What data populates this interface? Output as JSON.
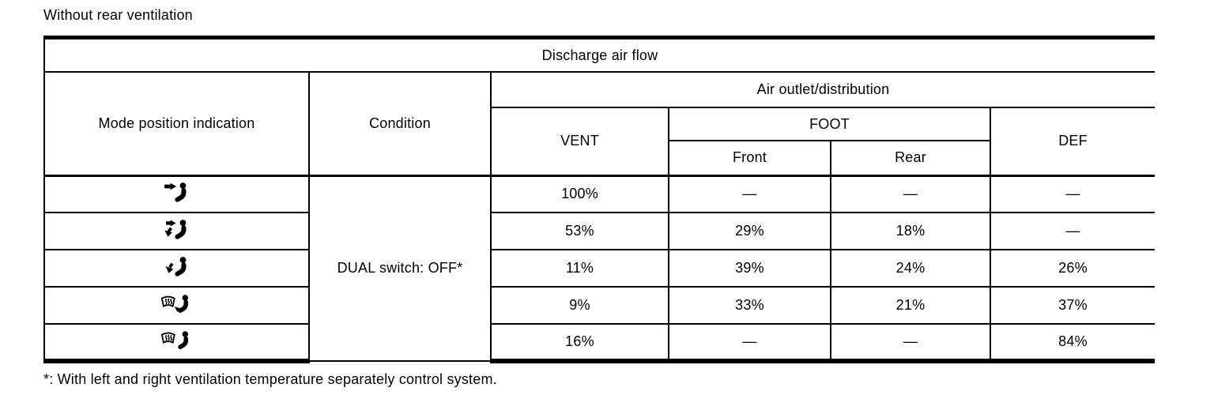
{
  "page": {
    "title": "Without rear ventilation",
    "footnote": "*: With left and right ventilation temperature separately control system."
  },
  "table": {
    "caption": "Discharge air flow",
    "columns": {
      "mode": "Mode position indication",
      "condition": "Condition",
      "air_outlet_group": "Air outlet/distribution",
      "vent": "VENT",
      "foot": "FOOT",
      "foot_front": "Front",
      "foot_rear": "Rear",
      "def": "DEF"
    },
    "condition_value": "DUAL switch: OFF*",
    "rows": [
      {
        "icon": "vent-mode-icon",
        "mode": "vent",
        "vent": "100%",
        "foot_front": "—",
        "foot_rear": "—",
        "def": "—"
      },
      {
        "icon": "bi-level-mode-icon",
        "mode": "bi-level",
        "vent": "53%",
        "foot_front": "29%",
        "foot_rear": "18%",
        "def": "—"
      },
      {
        "icon": "foot-mode-icon",
        "mode": "foot",
        "vent": "11%",
        "foot_front": "39%",
        "foot_rear": "24%",
        "def": "26%"
      },
      {
        "icon": "foot-def-mode-icon",
        "mode": "foot-def",
        "vent": "9%",
        "foot_front": "33%",
        "foot_rear": "21%",
        "def": "37%"
      },
      {
        "icon": "def-mode-icon",
        "mode": "def",
        "vent": "16%",
        "foot_front": "—",
        "foot_rear": "—",
        "def": "84%"
      }
    ]
  },
  "colors": {
    "text": "#000000",
    "border": "#000000",
    "background": "#ffffff"
  }
}
